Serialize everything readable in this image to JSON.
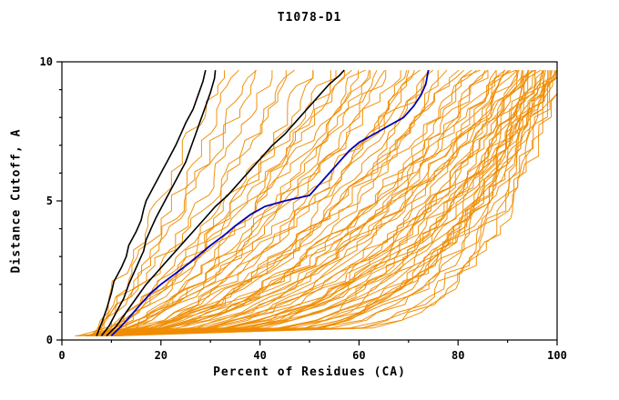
{
  "page": {
    "title": "T1078-D1"
  },
  "chart_data": {
    "type": "line",
    "title": "T1078-D1",
    "xlabel": "Percent of Residues (CA)",
    "ylabel": "Distance Cutoff, A",
    "xlim": [
      0,
      100
    ],
    "ylim": [
      0,
      10
    ],
    "x_ticks_major": [
      0,
      20,
      40,
      60,
      80,
      100
    ],
    "x_tick_minor_step": 10,
    "y_ticks_major": [
      0,
      5,
      10
    ],
    "y_tick_minor_step": 1,
    "grid": false,
    "legend": "none",
    "colors": {
      "ensemble": "#ef8c00",
      "highlight_blue": "#0000bb",
      "highlight_black": "#000000",
      "frame": "#000000"
    },
    "highlight_series": [
      {
        "name": "black-model-left-1",
        "color": "#000000",
        "width": 1.6,
        "points": [
          [
            7,
            0.15
          ],
          [
            8,
            0.6
          ],
          [
            9,
            1.1
          ],
          [
            10,
            1.7
          ],
          [
            10.5,
            2.1
          ],
          [
            12,
            2.6
          ],
          [
            13,
            3.0
          ],
          [
            13.5,
            3.4
          ],
          [
            15,
            3.9
          ],
          [
            16,
            4.3
          ],
          [
            16.5,
            4.7
          ],
          [
            17,
            5.0
          ],
          [
            18.5,
            5.5
          ],
          [
            20,
            6.0
          ],
          [
            21.5,
            6.5
          ],
          [
            23,
            7.0
          ],
          [
            24,
            7.4
          ],
          [
            25,
            7.8
          ],
          [
            26.5,
            8.3
          ],
          [
            27.5,
            8.8
          ],
          [
            28.5,
            9.3
          ],
          [
            29,
            9.7
          ]
        ]
      },
      {
        "name": "black-model-left-2",
        "color": "#000000",
        "width": 1.6,
        "points": [
          [
            8,
            0.15
          ],
          [
            9.5,
            0.5
          ],
          [
            11,
            1.0
          ],
          [
            12.5,
            1.5
          ],
          [
            13.5,
            2.0
          ],
          [
            14.5,
            2.4
          ],
          [
            15.5,
            2.8
          ],
          [
            16.5,
            3.2
          ],
          [
            17,
            3.6
          ],
          [
            18,
            4.0
          ],
          [
            19,
            4.4
          ],
          [
            20.5,
            4.9
          ],
          [
            22,
            5.4
          ],
          [
            23.5,
            5.9
          ],
          [
            25,
            6.4
          ],
          [
            26,
            6.9
          ],
          [
            27,
            7.4
          ],
          [
            28,
            7.9
          ],
          [
            29,
            8.4
          ],
          [
            30,
            8.9
          ],
          [
            30.8,
            9.4
          ],
          [
            31,
            9.7
          ]
        ]
      },
      {
        "name": "black-model-middle",
        "color": "#000000",
        "width": 1.6,
        "points": [
          [
            9,
            0.15
          ],
          [
            11,
            0.5
          ],
          [
            13,
            1.0
          ],
          [
            15,
            1.5
          ],
          [
            17,
            2.0
          ],
          [
            19,
            2.4
          ],
          [
            21,
            2.8
          ],
          [
            23,
            3.2
          ],
          [
            25,
            3.6
          ],
          [
            27,
            4.0
          ],
          [
            29,
            4.4
          ],
          [
            31,
            4.8
          ],
          [
            33.5,
            5.2
          ],
          [
            36,
            5.7
          ],
          [
            38,
            6.1
          ],
          [
            40,
            6.5
          ],
          [
            42.5,
            7.0
          ],
          [
            45,
            7.4
          ],
          [
            47,
            7.8
          ],
          [
            49.5,
            8.3
          ],
          [
            52,
            8.8
          ],
          [
            54,
            9.2
          ],
          [
            56,
            9.5
          ],
          [
            57,
            9.7
          ]
        ]
      },
      {
        "name": "blue-model",
        "color": "#0000bb",
        "width": 1.8,
        "points": [
          [
            10,
            0.15
          ],
          [
            12,
            0.5
          ],
          [
            14,
            0.9
          ],
          [
            16,
            1.3
          ],
          [
            18,
            1.7
          ],
          [
            20,
            2.0
          ],
          [
            23,
            2.4
          ],
          [
            26,
            2.8
          ],
          [
            28,
            3.1
          ],
          [
            30,
            3.4
          ],
          [
            33,
            3.8
          ],
          [
            35,
            4.1
          ],
          [
            38,
            4.5
          ],
          [
            41,
            4.8
          ],
          [
            45,
            5.0
          ],
          [
            50,
            5.2
          ],
          [
            52,
            5.6
          ],
          [
            54,
            6.0
          ],
          [
            56,
            6.4
          ],
          [
            58,
            6.8
          ],
          [
            60,
            7.1
          ],
          [
            63,
            7.4
          ],
          [
            66,
            7.7
          ],
          [
            69,
            8.0
          ],
          [
            71,
            8.4
          ],
          [
            72.5,
            8.8
          ],
          [
            73.5,
            9.2
          ],
          [
            74,
            9.7
          ]
        ]
      }
    ],
    "ensemble_curves": {
      "description": "Approx. 80 unlabeled orange model curves; each given as [percent_at_cutoff_0, percent_at_cutoff_10, shape_exponent] for p(c)=start+(end-start)*(c/10)^exp",
      "color": "#ef8c00",
      "params": [
        [
          5,
          32,
          0.9
        ],
        [
          6,
          35,
          0.85
        ],
        [
          5,
          38,
          0.8
        ],
        [
          7,
          40,
          0.9
        ],
        [
          6,
          42,
          0.75
        ],
        [
          8,
          45,
          0.7
        ],
        [
          5,
          47,
          0.8
        ],
        [
          7,
          50,
          0.65
        ],
        [
          6,
          52,
          0.75
        ],
        [
          8,
          55,
          0.6
        ],
        [
          5,
          57,
          0.7
        ],
        [
          7,
          58,
          0.8
        ],
        [
          6,
          60,
          0.55
        ],
        [
          8,
          62,
          0.65
        ],
        [
          5,
          63,
          0.75
        ],
        [
          7,
          65,
          0.5
        ],
        [
          6,
          66,
          0.6
        ],
        [
          8,
          68,
          0.7
        ],
        [
          5,
          70,
          0.45
        ],
        [
          7,
          71,
          0.55
        ],
        [
          6,
          72,
          0.65
        ],
        [
          8,
          74,
          0.5
        ],
        [
          5,
          75,
          0.6
        ],
        [
          7,
          76,
          0.4
        ],
        [
          6,
          78,
          0.5
        ],
        [
          8,
          80,
          0.6
        ],
        [
          5,
          81,
          0.35
        ],
        [
          7,
          82,
          0.45
        ],
        [
          6,
          83,
          0.55
        ],
        [
          8,
          85,
          0.4
        ],
        [
          5,
          86,
          0.5
        ],
        [
          7,
          87,
          0.3
        ],
        [
          6,
          88,
          0.45
        ],
        [
          8,
          89,
          0.55
        ],
        [
          5,
          90,
          0.35
        ],
        [
          7,
          90,
          0.5
        ],
        [
          6,
          91,
          0.25
        ],
        [
          8,
          91,
          0.4
        ],
        [
          5,
          92,
          0.5
        ],
        [
          7,
          92,
          0.3
        ],
        [
          6,
          93,
          0.45
        ],
        [
          8,
          93,
          0.2
        ],
        [
          5,
          94,
          0.35
        ],
        [
          7,
          94,
          0.5
        ],
        [
          6,
          95,
          0.25
        ],
        [
          8,
          95,
          0.4
        ],
        [
          5,
          96,
          0.3
        ],
        [
          7,
          96,
          0.18
        ],
        [
          6,
          97,
          0.35
        ],
        [
          8,
          97,
          0.25
        ],
        [
          5,
          98,
          0.4
        ],
        [
          7,
          98,
          0.2
        ],
        [
          6,
          98,
          0.3
        ],
        [
          8,
          99,
          0.15
        ],
        [
          5,
          99,
          0.25
        ],
        [
          7,
          99,
          0.35
        ],
        [
          6,
          100,
          0.2
        ],
        [
          8,
          100,
          0.3
        ],
        [
          5,
          100,
          0.15
        ],
        [
          7,
          100,
          0.25
        ],
        [
          6,
          100,
          0.35
        ],
        [
          9,
          100,
          0.18
        ],
        [
          10,
          95,
          0.22
        ],
        [
          9,
          93,
          0.28
        ],
        [
          10,
          97,
          0.16
        ],
        [
          9,
          99,
          0.24
        ],
        [
          10,
          96,
          0.32
        ],
        [
          9,
          94,
          0.2
        ],
        [
          10,
          98,
          0.26
        ],
        [
          9,
          92,
          0.34
        ],
        [
          4,
          88,
          0.38
        ],
        [
          4,
          90,
          0.28
        ],
        [
          4,
          96,
          0.2
        ],
        [
          4,
          85,
          0.45
        ],
        [
          4,
          80,
          0.55
        ],
        [
          9,
          75,
          0.5
        ],
        [
          10,
          70,
          0.6
        ],
        [
          9,
          65,
          0.7
        ],
        [
          10,
          60,
          0.75
        ],
        [
          9,
          55,
          0.85
        ]
      ]
    }
  }
}
